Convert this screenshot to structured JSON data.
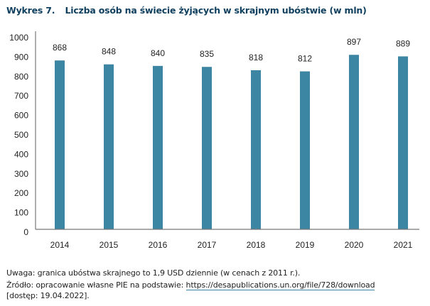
{
  "title": {
    "number": "Wykres 7.",
    "text": "Liczba osób na świecie żyjących w skrajnym ubóstwie (w mln)"
  },
  "colors": {
    "bar": "#3d86a3",
    "axis": "#777777",
    "title": "#0f3f5e"
  },
  "chart_data": {
    "type": "bar",
    "title": "Liczba osób na świecie żyjących w skrajnym ubóstwie (w mln)",
    "xlabel": "",
    "ylabel": "",
    "categories": [
      "2014",
      "2015",
      "2016",
      "2017",
      "2018",
      "2019",
      "2020",
      "2021"
    ],
    "values": [
      868,
      848,
      840,
      835,
      818,
      812,
      897,
      889
    ],
    "data_labels": [
      "868",
      "848",
      "840",
      "835",
      "818",
      "812",
      "897",
      "889"
    ],
    "ylim": [
      0,
      1000
    ],
    "yticks": [
      "0",
      "100",
      "200",
      "300",
      "400",
      "500",
      "600",
      "700",
      "800",
      "900",
      "1000"
    ],
    "grid": false,
    "legend": "none"
  },
  "notes": {
    "remark": "Uwaga: granica ubóstwa skrajnego to 1,9 USD dziennie (w cenach z 2011 r.).",
    "source_prefix": "Źródło: opracowanie własne PIE na podstawie: ",
    "source_link": "https://desapublications.un.org/file/728/download",
    "access": "[dostęp: 19.04.2022]."
  }
}
